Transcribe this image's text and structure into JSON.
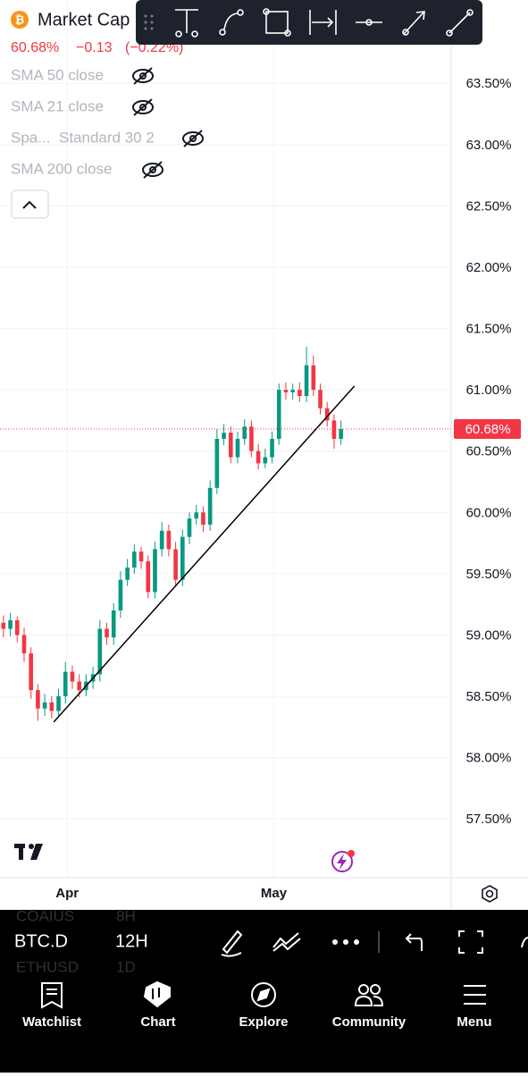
{
  "header": {
    "symbol_title": "Market Cap",
    "price": "60.68%",
    "change": "−0.13",
    "change_pct": "(−0.22%)"
  },
  "indicators": [
    "SMA 50 close",
    "SMA 21 close",
    "Spa...",
    "Standard 30 2",
    "SMA 200 close"
  ],
  "chart_data": {
    "type": "candlestick",
    "x": [
      1,
      3,
      5,
      7,
      9,
      11,
      13,
      15,
      17,
      19,
      21,
      23,
      25,
      27,
      29,
      31,
      33,
      35,
      37,
      39,
      41,
      43,
      45,
      47,
      49,
      51,
      53,
      55,
      57,
      59,
      61,
      63,
      65,
      67,
      69,
      71,
      73,
      75,
      77,
      79,
      81,
      83,
      85,
      87,
      89,
      91,
      93,
      95,
      97,
      99
    ],
    "open": [
      59.1,
      59.05,
      59.12,
      59.0,
      58.85,
      58.55,
      58.4,
      58.45,
      58.38,
      58.5,
      58.7,
      58.62,
      58.55,
      58.62,
      58.68,
      59.05,
      58.98,
      59.2,
      59.45,
      59.55,
      59.68,
      59.6,
      59.35,
      59.7,
      59.85,
      59.7,
      59.45,
      59.8,
      59.95,
      60.0,
      59.9,
      60.2,
      60.6,
      60.65,
      60.45,
      60.6,
      60.7,
      60.5,
      60.4,
      60.45,
      60.6,
      61.0,
      60.98,
      61.0,
      60.95,
      61.2,
      61.0,
      60.85,
      60.75,
      60.6
    ],
    "high": [
      59.16,
      59.18,
      59.15,
      59.06,
      58.9,
      58.6,
      58.52,
      58.5,
      58.56,
      58.78,
      58.75,
      58.68,
      58.68,
      58.74,
      59.12,
      59.1,
      59.26,
      59.52,
      59.62,
      59.74,
      59.72,
      59.65,
      59.76,
      59.92,
      59.9,
      59.76,
      59.86,
      60.0,
      60.06,
      60.05,
      60.26,
      60.68,
      60.72,
      60.7,
      60.66,
      60.76,
      60.75,
      60.56,
      60.52,
      60.66,
      61.05,
      61.06,
      61.05,
      61.06,
      61.35,
      61.28,
      61.05,
      60.9,
      60.8,
      60.75
    ],
    "low": [
      58.98,
      58.99,
      58.94,
      58.78,
      58.48,
      58.3,
      58.34,
      58.32,
      58.33,
      58.44,
      58.56,
      58.49,
      58.5,
      58.56,
      58.62,
      58.92,
      58.92,
      59.14,
      59.4,
      59.5,
      59.54,
      59.3,
      59.3,
      59.64,
      59.64,
      59.4,
      59.4,
      59.74,
      59.9,
      59.84,
      59.85,
      60.15,
      60.55,
      60.4,
      60.4,
      60.55,
      60.45,
      60.35,
      60.36,
      60.4,
      60.55,
      60.92,
      60.92,
      60.9,
      60.9,
      60.95,
      60.8,
      60.7,
      60.52,
      60.55
    ],
    "close": [
      59.05,
      59.12,
      59.0,
      58.85,
      58.55,
      58.4,
      58.45,
      58.38,
      58.5,
      58.7,
      58.62,
      58.55,
      58.62,
      58.68,
      59.05,
      58.98,
      59.2,
      59.45,
      59.55,
      59.68,
      59.6,
      59.35,
      59.7,
      59.85,
      59.7,
      59.45,
      59.8,
      59.95,
      60.0,
      59.9,
      60.2,
      60.6,
      60.65,
      60.45,
      60.6,
      60.7,
      60.5,
      60.4,
      60.45,
      60.6,
      61.0,
      60.98,
      61.0,
      60.95,
      61.2,
      61.0,
      60.85,
      60.75,
      60.6,
      60.68
    ],
    "up_color": "#089981",
    "down_color": "#f23645",
    "xlim": [
      0,
      131
    ],
    "xticks": [
      {
        "value": 19.5,
        "label": "Apr"
      },
      {
        "value": 79.5,
        "label": "May"
      }
    ],
    "ylim": [
      57.02,
      64.18
    ],
    "yticks": [
      {
        "value": 57.5,
        "label": "57.50%"
      },
      {
        "value": 58,
        "label": "58.00%"
      },
      {
        "value": 58.5,
        "label": "58.50%"
      },
      {
        "value": 59,
        "label": "59.00%"
      },
      {
        "value": 59.5,
        "label": "59.50%"
      },
      {
        "value": 60,
        "label": "60.00%"
      },
      {
        "value": 60.5,
        "label": "60.50%"
      },
      {
        "value": 61,
        "label": "61.00%"
      },
      {
        "value": 61.5,
        "label": "61.50%"
      },
      {
        "value": 62,
        "label": "62.00%"
      },
      {
        "value": 62.5,
        "label": "62.50%"
      },
      {
        "value": 63,
        "label": "63.00%"
      },
      {
        "value": 63.5,
        "label": "63.50%"
      }
    ],
    "grid": true,
    "last_price": 60.68,
    "last_price_label": "60.68%",
    "trendline": {
      "x": [
        15.6,
        102.9
      ],
      "values": [
        58.29,
        61.03
      ]
    }
  },
  "toolbar": {
    "symbol": "BTC.D",
    "interval": "12H",
    "ghost_symbols": [
      "COAIUS",
      "8H",
      "ETHUSD",
      "1D"
    ]
  },
  "nav": [
    "Watchlist",
    "Chart",
    "Explore",
    "Community",
    "Menu"
  ]
}
